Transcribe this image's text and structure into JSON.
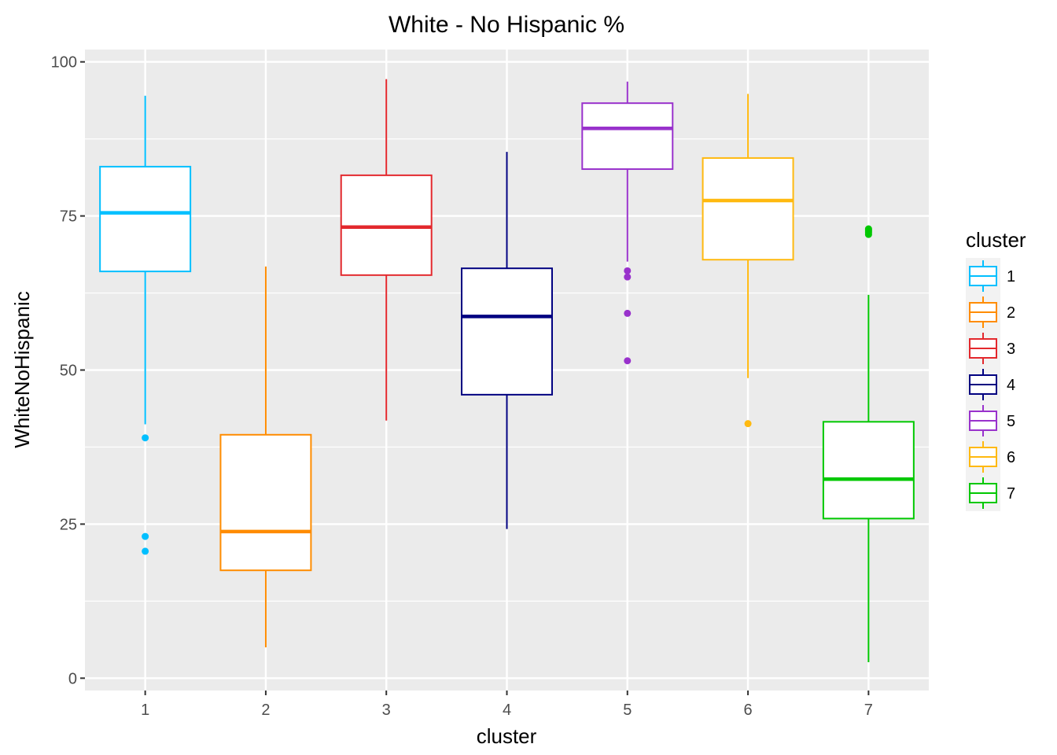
{
  "chart_data": {
    "type": "boxplot",
    "title": "White - No Hispanic %",
    "xlabel": "cluster",
    "ylabel": "WhiteNoHispanic",
    "ylim": [
      -2,
      102
    ],
    "y_ticks": [
      0,
      25,
      50,
      75,
      100
    ],
    "y_tick_labels": [
      "0",
      "25",
      "50",
      "75",
      "100"
    ],
    "grid": true,
    "legend": {
      "title": "cluster",
      "position": "right"
    },
    "categories": [
      "1",
      "2",
      "3",
      "4",
      "5",
      "6",
      "7"
    ],
    "series": [
      {
        "name": "1",
        "color": "#00bfff",
        "whisker_low": 41.2,
        "q1": 66.0,
        "median": 75.5,
        "q3": 83.0,
        "whisker_high": 94.5,
        "outliers": [
          39.0,
          23.0,
          20.6
        ]
      },
      {
        "name": "2",
        "color": "#ff8c00",
        "whisker_low": 5.0,
        "q1": 17.5,
        "median": 23.8,
        "q3": 39.5,
        "whisker_high": 66.8,
        "outliers": []
      },
      {
        "name": "3",
        "color": "#e3282d",
        "whisker_low": 41.8,
        "q1": 65.4,
        "median": 73.2,
        "q3": 81.6,
        "whisker_high": 97.2,
        "outliers": []
      },
      {
        "name": "4",
        "color": "#000080",
        "whisker_low": 24.2,
        "q1": 46.0,
        "median": 58.7,
        "q3": 66.5,
        "whisker_high": 85.4,
        "outliers": []
      },
      {
        "name": "5",
        "color": "#9932cc",
        "whisker_low": 67.6,
        "q1": 82.6,
        "median": 89.2,
        "q3": 93.3,
        "whisker_high": 96.8,
        "outliers": [
          66.1,
          65.1,
          59.2,
          51.5
        ]
      },
      {
        "name": "6",
        "color": "#ffb90f",
        "whisker_low": 48.7,
        "q1": 67.9,
        "median": 77.5,
        "q3": 84.4,
        "whisker_high": 94.8,
        "outliers": [
          41.3
        ]
      },
      {
        "name": "7",
        "color": "#00c800",
        "whisker_low": 2.6,
        "q1": 25.9,
        "median": 32.3,
        "q3": 41.6,
        "whisker_high": 62.2,
        "outliers": [
          72.0,
          72.3,
          72.5,
          72.7,
          72.9
        ]
      }
    ]
  }
}
